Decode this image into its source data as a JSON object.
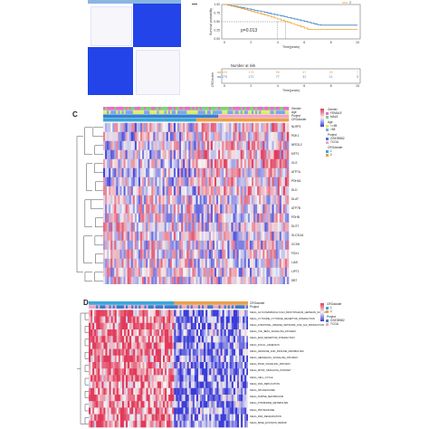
{
  "panel_letters": {
    "c": "C",
    "d": "D"
  },
  "km_plot": {
    "legend_item": "2",
    "y_axis_label": "Survival probability",
    "y_ticks": [
      "1.00",
      "0.75",
      "0.50",
      "0.25",
      "0.00"
    ],
    "x_ticks": [
      "0",
      "2",
      "4",
      "6",
      "8",
      "10"
    ],
    "x_label": "Time(years)",
    "p_value": "p=0.013",
    "risk_title": "Number at risk",
    "risk_side_label": "CRGcluster",
    "risk_rows": [
      {
        "values": [
          "320",
          "173",
          "95",
          "47",
          "25",
          "7"
        ],
        "color": "#e3a33a"
      },
      {
        "values": [
          "275",
          "172",
          "77",
          "31",
          "11",
          "5"
        ],
        "color": "#3f84c8"
      }
    ],
    "colors": {
      "cluster1": "#f0a030",
      "cluster2": "#3a80c8"
    }
  },
  "panel_c": {
    "annotation_labels": [
      "Gender",
      "Age",
      "Project",
      "CRGcluster"
    ],
    "genes": [
      "NLRP3",
      "PDK1",
      "NFE2L2",
      "MTF1",
      "GLS",
      "ATP7A",
      "PDHA1",
      "DLD",
      "DLAT",
      "ATP7B",
      "PDHB",
      "DLST",
      "SLC31A1",
      "GCSH",
      "FDX1",
      "LIAS",
      "LIPT1",
      "DBT"
    ],
    "legend": [
      {
        "title": "Gender",
        "items": [
          "FEMALE",
          "MALE"
        ],
        "colors": [
          "#f06ad0",
          "#7fd17a"
        ]
      },
      {
        "title": "Age",
        "items": [
          "<=65",
          ">65"
        ],
        "colors": [
          "#d9ef6a",
          "#7aa8e8"
        ]
      },
      {
        "title": "Project",
        "items": [
          "GSE39582",
          "TCGA"
        ],
        "colors": [
          "#3a7fd0",
          "#f0a6c4"
        ]
      },
      {
        "title": "CRGcluster",
        "items": [
          "1",
          "2"
        ],
        "colors": [
          "#3aa6d8",
          "#e8a04a"
        ]
      }
    ]
  },
  "panel_d": {
    "annotation_labels": [
      "CRGcluster",
      "Project"
    ],
    "pathways": [
      "KEGG_GLYCOSAMINOGLYCAN_BIOSYNTHESIS_HEPARAN_SULFATE",
      "KEGG_CYTOKINE_CYTOKINE_RECEPTOR_INTERACTION",
      "KEGG_INTESTINAL_IMMUNE_NETWORK_FOR_IGA_PRODUCTION",
      "KEGG_TGF_BETA_SIGNALING_PATHWAY",
      "KEGG_ECM_RECEPTOR_INTERACTION",
      "KEGG_FOCAL_ADHESION",
      "KEGG_ARGININE_AND_PROLINE_METABOLISM",
      "KEGG_HEDGEHOG_SIGNALING_PATHWAY",
      "KEGG_PPAR_SIGNALING_PATHWAY",
      "KEGG_MTOR_SIGNALING_PATHWAY",
      "KEGG_CELL_CYCLE",
      "KEGG_DNA_REPLICATION",
      "KEGG_SPLICEOSOME",
      "KEGG_PURINE_METABOLISM",
      "KEGG_PYRIMIDINE_METABOLISM",
      "KEGG_PROTEASOME",
      "KEGG_RNA_DEGRADATION",
      "KEGG_BASE_EXCISION_REPAIR"
    ],
    "legend": [
      {
        "title": "CRGcluster",
        "items": [
          "1",
          "2"
        ],
        "colors": [
          "#3aa6d8",
          "#e8a04a"
        ]
      },
      {
        "title": "Project",
        "items": [
          "GSE39582",
          "TCGA"
        ],
        "colors": [
          "#3a7fd0",
          "#f0a6c4"
        ]
      }
    ]
  },
  "heatmap_colors": {
    "low": "#3b3bd8",
    "mid": "#f4f4f4",
    "high": "#e23a5a"
  }
}
